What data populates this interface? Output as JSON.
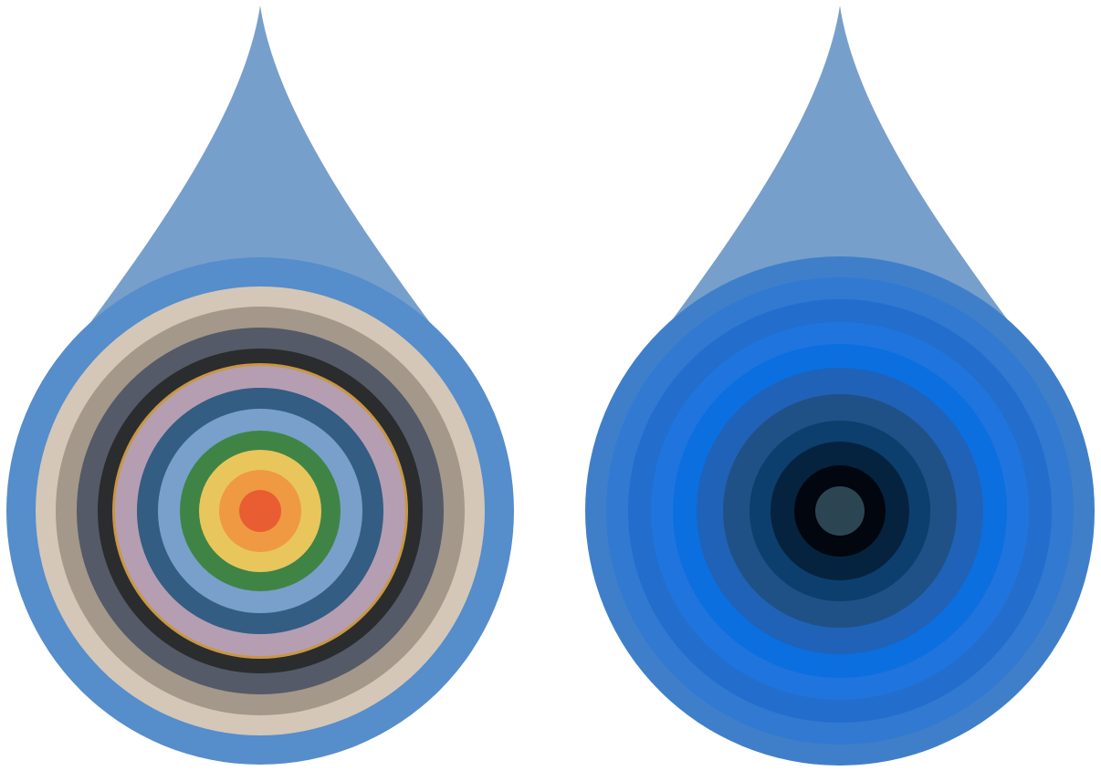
{
  "drops": [
    {
      "id": "left",
      "tip_color": "#779fcb",
      "rings": [
        "#568dcb",
        "#d4c7b7",
        "#a3988a",
        "#545a67",
        "#2b2c2e",
        "#c89742",
        "#b59eb2",
        "#335d82",
        "#78a0cb",
        "#3f8445",
        "#e8c65b",
        "#ef9942",
        "#e95d33"
      ]
    },
    {
      "id": "right",
      "tip_color": "#779fcb",
      "rings": [
        "#3f7fca",
        "#3179d1",
        "#236dcc",
        "#1f75dd",
        "#0b6fe0",
        "#1f62b7",
        "#1f5186",
        "#0c3f6d",
        "#05233f",
        "#02060f",
        "#2b4652"
      ]
    }
  ]
}
